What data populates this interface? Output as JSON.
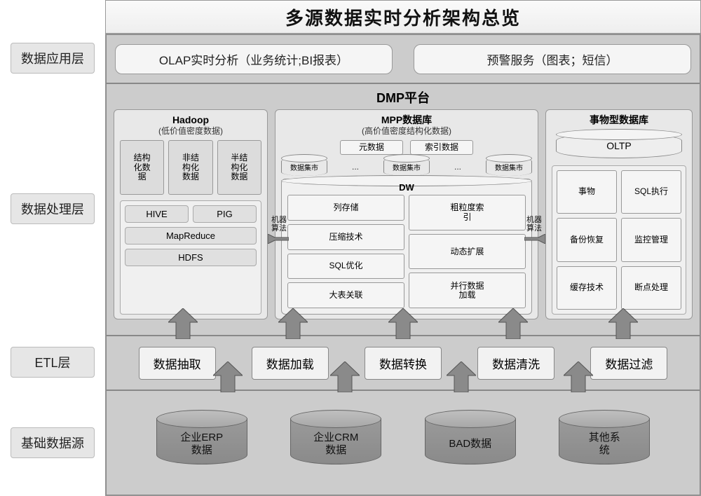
{
  "title": "多源数据实时分析架构总览",
  "colors": {
    "layer_bg": "#cccccc",
    "panel_bg": "#e8e8e8",
    "box_bg": "#dcdcdc",
    "cylinder_fill": "#9a9a9a",
    "cylinder_top": "#bfbfbf",
    "arrow_fill": "#8a8a8a",
    "arrow_stroke": "#555555",
    "text": "#111111"
  },
  "layers": {
    "app": {
      "side": "数据应用层"
    },
    "proc": {
      "side": "数据处理层"
    },
    "etl": {
      "side": "ETL层"
    },
    "src": {
      "side": "基础数据源"
    }
  },
  "app": {
    "olap": "OLAP实时分析（业务统计;BI报表）",
    "alert": "预警服务（图表；短信）"
  },
  "dmp": {
    "title": "DMP平台",
    "ml_tag": "机器\n算法",
    "hadoop": {
      "title": "Hadoop",
      "sub": "(低价值密度数据)",
      "types": {
        "a": "结构\n化数\n据",
        "b": "非结\n构化\n数据",
        "c": "半结\n构化\n数据"
      },
      "tech": {
        "hive": "HIVE",
        "pig": "PIG",
        "mr": "MapReduce",
        "hdfs": "HDFS"
      }
    },
    "mpp": {
      "title": "MPP数据库",
      "sub": "(高价值密度结构化数据)",
      "meta": "元数据",
      "index": "索引数据",
      "mart": "数据集市",
      "dots": "...",
      "dw": "DW",
      "items": {
        "col_store": "列存储",
        "compress": "压缩技术",
        "sql_opt": "SQL优化",
        "big_join": "大表关联",
        "coarse_idx": "粗粒度索\n引",
        "dyn_ext": "动态扩展",
        "par_load": "并行数据\n加载"
      }
    },
    "oltp": {
      "title": "事物型数据库",
      "cyl": "OLTP",
      "items": {
        "tx": "事物",
        "sql": "SQL执行",
        "backup": "备份恢复",
        "monitor": "监控管理",
        "cache": "缓存技术",
        "breakpoint": "断点处理"
      }
    }
  },
  "etl": {
    "extract": "数据抽取",
    "load": "数据加载",
    "transform": "数据转换",
    "clean": "数据清洗",
    "filter": "数据过滤"
  },
  "sources": {
    "erp": "企业ERP\n数据",
    "crm": "企业CRM\n数据",
    "bad": "BAD数据",
    "other": "其他系\n统"
  }
}
